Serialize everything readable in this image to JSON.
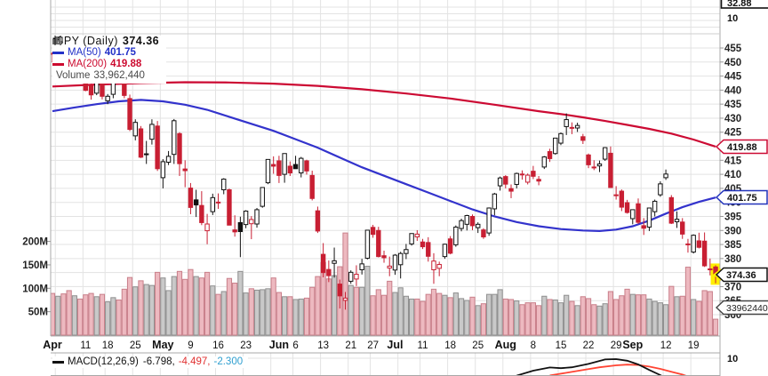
{
  "legend": {
    "symbol_label": "SPY (Daily)",
    "symbol_value": "374.36",
    "ma50_label": "MA(50)",
    "ma50_value": "401.75",
    "ma200_label": "MA(200)",
    "ma200_value": "419.88",
    "volume_label": "Volume",
    "volume_value": "33,962,440"
  },
  "macd_legend": {
    "label": "MACD(12,26,9)",
    "macd_value": "-6.798,",
    "signal_value": "-4.497,",
    "hist_value": "-2.300"
  },
  "axis_boxes": {
    "ma200_tag": "419.88",
    "ma50_tag": "401.75",
    "last_price_tag": "374.36",
    "volume_tag": "33962440",
    "top_panel_tag": "32.88",
    "top_panel_tick": "10",
    "macd_panel_tick": "10"
  },
  "colors": {
    "candle_red": "#c81f33",
    "candle_black": "#111111",
    "ma50": "#3333cc",
    "ma200": "#cc0a33",
    "vol_red_fill": "#edb9c0",
    "vol_red_stroke": "#c97f8a",
    "vol_gray_fill": "#c9c9c9",
    "vol_gray_stroke": "#8f8f8f",
    "macd_line": "#111111",
    "macd_signal": "#ff4433",
    "highlight_yellow": "#ffee00",
    "grid": "#e3e3e3",
    "axis": "#a8a8a8",
    "tick_text": "#222222"
  },
  "chart_data": {
    "type": "candlestick",
    "symbol": "SPY (Daily)",
    "last_price": 374.36,
    "price_axis_ticks": [
      455,
      450,
      445,
      440,
      435,
      430,
      425,
      420,
      415,
      410,
      405,
      400,
      395,
      390,
      385,
      380,
      375,
      370,
      365,
      360
    ],
    "volume_axis_ticks": [
      {
        "label": "200M",
        "value": 200
      },
      {
        "label": "150M",
        "value": 150
      },
      {
        "label": "100M",
        "value": 100
      },
      {
        "label": "50M",
        "value": 50
      }
    ],
    "x_labels": [
      {
        "day": 0,
        "text": "Apr",
        "month": true
      },
      {
        "day": 6,
        "text": "11",
        "month": false
      },
      {
        "day": 10,
        "text": "18",
        "month": false
      },
      {
        "day": 15,
        "text": "25",
        "month": false
      },
      {
        "day": 20,
        "text": "May",
        "month": true
      },
      {
        "day": 25,
        "text": "9",
        "month": false
      },
      {
        "day": 30,
        "text": "16",
        "month": false
      },
      {
        "day": 35,
        "text": "23",
        "month": false
      },
      {
        "day": 41,
        "text": "Jun",
        "month": true
      },
      {
        "day": 44,
        "text": "6",
        "month": false
      },
      {
        "day": 49,
        "text": "13",
        "month": false
      },
      {
        "day": 54,
        "text": "21",
        "month": false
      },
      {
        "day": 58,
        "text": "27",
        "month": false
      },
      {
        "day": 62,
        "text": "Jul",
        "month": true
      },
      {
        "day": 67,
        "text": "11",
        "month": false
      },
      {
        "day": 72,
        "text": "18",
        "month": false
      },
      {
        "day": 77,
        "text": "25",
        "month": false
      },
      {
        "day": 82,
        "text": "Aug",
        "month": true
      },
      {
        "day": 87,
        "text": "8",
        "month": false
      },
      {
        "day": 92,
        "text": "15",
        "month": false
      },
      {
        "day": 97,
        "text": "22",
        "month": false
      },
      {
        "day": 102,
        "text": "29",
        "month": false
      },
      {
        "day": 105,
        "text": "Sep",
        "month": true
      },
      {
        "day": 111,
        "text": "12",
        "month": false
      },
      {
        "day": 116,
        "text": "19",
        "month": false
      }
    ],
    "week_gridline_days": [
      1,
      6,
      10,
      15,
      20,
      25,
      30,
      35,
      40,
      44,
      49,
      54,
      58,
      63,
      67,
      72,
      77,
      82,
      87,
      92,
      97,
      102,
      107,
      111,
      116
    ],
    "days": [
      [
        453.1,
        453.5,
        449.9,
        452.9,
        89
      ],
      [
        453.1,
        456.9,
        452.4,
        456.8,
        83
      ],
      [
        455.2,
        455.9,
        449.7,
        451.0,
        88
      ],
      [
        447.6,
        450.3,
        445.0,
        446.5,
        95
      ],
      [
        446.5,
        448.9,
        443.5,
        448.8,
        84
      ],
      [
        448.0,
        449.4,
        446.0,
        447.6,
        77
      ],
      [
        444.1,
        445.7,
        439.6,
        439.9,
        86
      ],
      [
        441.6,
        444.7,
        436.6,
        438.3,
        89
      ],
      [
        438.9,
        443.7,
        438.2,
        443.3,
        82
      ],
      [
        443.7,
        444.1,
        436.7,
        437.8,
        87
      ],
      [
        436.2,
        438.6,
        435.0,
        437.8,
        71
      ],
      [
        438.5,
        445.1,
        437.1,
        445.0,
        80
      ],
      [
        446.6,
        447.6,
        443.5,
        444.7,
        75
      ],
      [
        447.4,
        450.0,
        437.1,
        438.1,
        98
      ],
      [
        437.0,
        438.4,
        425.4,
        426.0,
        123
      ],
      [
        423.7,
        429.6,
        422.1,
        428.5,
        103
      ],
      [
        426.2,
        427.2,
        415.8,
        416.1,
        116
      ],
      [
        417.1,
        421.9,
        413.7,
        417.3,
        108
      ],
      [
        422.5,
        429.6,
        420.6,
        427.8,
        106
      ],
      [
        427.2,
        429.0,
        411.2,
        412.0,
        134
      ],
      [
        408.8,
        415.4,
        405.0,
        414.5,
        122
      ],
      [
        414.3,
        418.3,
        413.3,
        416.4,
        95
      ],
      [
        417.1,
        429.7,
        413.7,
        429.1,
        125
      ],
      [
        424.5,
        425.0,
        409.4,
        413.8,
        136
      ],
      [
        411.9,
        415.0,
        405.4,
        411.3,
        119
      ],
      [
        405.1,
        406.9,
        395.8,
        398.2,
        140
      ],
      [
        400.9,
        404.5,
        394.8,
        399.1,
        125
      ],
      [
        398.9,
        404.0,
        391.9,
        392.8,
        122
      ],
      [
        389.9,
        395.9,
        385.1,
        392.3,
        134
      ],
      [
        396.7,
        403.1,
        395.5,
        401.7,
        105
      ],
      [
        399.8,
        403.2,
        397.7,
        400.1,
        87
      ],
      [
        404.5,
        408.6,
        402.9,
        408.3,
        93
      ],
      [
        404.5,
        404.9,
        391.8,
        391.9,
        121
      ],
      [
        390.2,
        395.4,
        387.8,
        389.5,
        111
      ],
      [
        392.8,
        394.9,
        380.5,
        389.6,
        136
      ],
      [
        392.1,
        397.2,
        390.8,
        396.9,
        90
      ],
      [
        392.4,
        395.1,
        386.9,
        393.9,
        99
      ],
      [
        392.3,
        398.0,
        391.0,
        397.4,
        96
      ],
      [
        398.6,
        405.4,
        398.1,
        405.3,
        97
      ],
      [
        407.0,
        415.4,
        406.5,
        415.3,
        99
      ],
      [
        413.5,
        416.4,
        410.2,
        412.9,
        122
      ],
      [
        414.8,
        416.6,
        406.9,
        409.6,
        91
      ],
      [
        410.0,
        417.4,
        407.0,
        417.4,
        82
      ],
      [
        412.9,
        414.6,
        409.4,
        410.5,
        82
      ],
      [
        413.5,
        416.6,
        412.0,
        412.0,
        76
      ],
      [
        410.5,
        416.2,
        408.9,
        415.7,
        77
      ],
      [
        414.8,
        415.2,
        409.9,
        411.2,
        79
      ],
      [
        409.6,
        411.3,
        400.7,
        401.4,
        102
      ],
      [
        397.0,
        398.5,
        389.1,
        389.8,
        125
      ],
      [
        381.5,
        385.5,
        373.3,
        375.0,
        155
      ],
      [
        376.1,
        379.3,
        371.6,
        373.9,
        120
      ],
      [
        378.3,
        383.9,
        373.2,
        379.2,
        127
      ],
      [
        370.9,
        372.5,
        362.2,
        366.7,
        146
      ],
      [
        365.1,
        368.1,
        361.8,
        365.9,
        218
      ],
      [
        371.9,
        375.8,
        371.0,
        375.1,
        106
      ],
      [
        372.7,
        377.6,
        370.2,
        374.4,
        102
      ],
      [
        376.0,
        379.9,
        374.3,
        378.1,
        102
      ],
      [
        380.1,
        390.2,
        379.7,
        390.1,
        147
      ],
      [
        391.1,
        392.0,
        387.4,
        388.6,
        84
      ],
      [
        390.0,
        391.3,
        380.4,
        380.7,
        97
      ],
      [
        381.0,
        382.8,
        378.5,
        380.3,
        85
      ],
      [
        376.6,
        380.7,
        373.7,
        377.3,
        115
      ],
      [
        375.9,
        381.6,
        374.2,
        381.2,
        91
      ],
      [
        377.8,
        382.4,
        372.9,
        381.8,
        101
      ],
      [
        381.8,
        385.2,
        379.8,
        383.2,
        83
      ],
      [
        385.2,
        389.0,
        384.6,
        388.9,
        77
      ],
      [
        387.7,
        390.1,
        386.3,
        388.7,
        77
      ],
      [
        385.9,
        387.0,
        383.4,
        384.2,
        72
      ],
      [
        385.7,
        387.6,
        378.9,
        380.8,
        87
      ],
      [
        376.0,
        381.9,
        371.0,
        379.1,
        98
      ],
      [
        376.5,
        378.9,
        373.7,
        377.9,
        89
      ],
      [
        380.7,
        385.3,
        379.9,
        385.1,
        85
      ],
      [
        387.0,
        388.0,
        381.5,
        381.9,
        80
      ],
      [
        384.9,
        391.8,
        384.2,
        391.2,
        90
      ],
      [
        390.7,
        394.2,
        389.7,
        393.5,
        78
      ],
      [
        392.2,
        395.6,
        390.0,
        395.3,
        74
      ],
      [
        395.0,
        395.7,
        390.1,
        391.7,
        81
      ],
      [
        391.0,
        392.9,
        389.1,
        392.2,
        63
      ],
      [
        390.2,
        390.8,
        387.0,
        387.7,
        67
      ],
      [
        389.1,
        398.2,
        388.1,
        398.0,
        87
      ],
      [
        397.7,
        403.4,
        395.4,
        403.0,
        87
      ],
      [
        405.9,
        409.2,
        404.2,
        408.7,
        97
      ],
      [
        409.2,
        409.7,
        405.0,
        406.5,
        77
      ],
      [
        404.9,
        406.4,
        401.5,
        404.0,
        76
      ],
      [
        406.4,
        410.6,
        405.0,
        410.3,
        73
      ],
      [
        409.9,
        411.4,
        408.1,
        410.1,
        65
      ],
      [
        407.2,
        410.3,
        406.4,
        409.7,
        69
      ],
      [
        411.1,
        413.0,
        408.3,
        409.3,
        69
      ],
      [
        408.2,
        409.4,
        406.1,
        407.6,
        63
      ],
      [
        412.6,
        416.5,
        411.9,
        416.2,
        83
      ],
      [
        418.1,
        419.1,
        414.4,
        415.6,
        76
      ],
      [
        417.4,
        423.0,
        417.0,
        422.9,
        75
      ],
      [
        421.1,
        424.9,
        420.4,
        424.5,
        69
      ],
      [
        427.0,
        431.7,
        424.0,
        429.5,
        85
      ],
      [
        426.6,
        428.5,
        424.3,
        426.7,
        72
      ],
      [
        426.5,
        428.4,
        425.1,
        427.4,
        63
      ],
      [
        423.4,
        424.4,
        420.8,
        422.1,
        82
      ],
      [
        416.9,
        417.4,
        412.2,
        413.4,
        78
      ],
      [
        412.6,
        415.0,
        411.5,
        412.4,
        65
      ],
      [
        413.0,
        414.9,
        410.8,
        413.7,
        62
      ],
      [
        415.4,
        419.7,
        414.8,
        419.5,
        67
      ],
      [
        417.5,
        419.9,
        405.2,
        405.3,
        93
      ],
      [
        402.5,
        405.8,
        401.0,
        402.7,
        76
      ],
      [
        404.0,
        404.6,
        396.9,
        398.3,
        84
      ],
      [
        399.9,
        400.9,
        396.0,
        396.4,
        98
      ],
      [
        394.2,
        397.5,
        392.2,
        397.4,
        87
      ],
      [
        399.5,
        401.4,
        392.3,
        392.9,
        86
      ],
      [
        391.7,
        394.4,
        388.4,
        390.8,
        86
      ],
      [
        391.2,
        398.0,
        389.8,
        398.0,
        77
      ],
      [
        396.7,
        401.0,
        395.0,
        400.4,
        72
      ],
      [
        402.7,
        407.5,
        402.0,
        406.6,
        69
      ],
      [
        408.8,
        411.7,
        408.0,
        410.1,
        65
      ],
      [
        401.7,
        402.6,
        392.3,
        392.6,
        104
      ],
      [
        393.1,
        396.8,
        390.9,
        394.0,
        82
      ],
      [
        393.0,
        394.4,
        387.0,
        388.7,
        83
      ],
      [
        385.0,
        387.0,
        382.1,
        385.2,
        145
      ],
      [
        382.3,
        388.6,
        381.8,
        388.3,
        76
      ],
      [
        386.3,
        389.2,
        383.6,
        384.0,
        72
      ],
      [
        386.2,
        389.3,
        377.0,
        377.4,
        95
      ],
      [
        376.3,
        380.0,
        374.0,
        376.0,
        93
      ],
      [
        377.0,
        377.6,
        371.2,
        374.36,
        34
      ]
    ],
    "ma50": [
      [
        0,
        432.5
      ],
      [
        4,
        433.8
      ],
      [
        8,
        435.0
      ],
      [
        12,
        436.0
      ],
      [
        16,
        436.5
      ],
      [
        20,
        436.0
      ],
      [
        24,
        434.8
      ],
      [
        28,
        433.0
      ],
      [
        32,
        430.5
      ],
      [
        36,
        428.0
      ],
      [
        40,
        425.5
      ],
      [
        44,
        422.5
      ],
      [
        48,
        419.5
      ],
      [
        52,
        416.0
      ],
      [
        56,
        412.5
      ],
      [
        60,
        409.5
      ],
      [
        64,
        406.5
      ],
      [
        68,
        403.5
      ],
      [
        72,
        400.5
      ],
      [
        76,
        397.5
      ],
      [
        80,
        395.0
      ],
      [
        84,
        393.0
      ],
      [
        88,
        391.5
      ],
      [
        92,
        390.5
      ],
      [
        96,
        390.0
      ],
      [
        99,
        389.8
      ],
      [
        102,
        390.3
      ],
      [
        105,
        391.5
      ],
      [
        108,
        393.5
      ],
      [
        111,
        396.0
      ],
      [
        114,
        398.3
      ],
      [
        117,
        400.2
      ],
      [
        120,
        401.75
      ]
    ],
    "ma200": [
      [
        0,
        441.3
      ],
      [
        8,
        442.0
      ],
      [
        16,
        442.5
      ],
      [
        24,
        442.8
      ],
      [
        32,
        442.7
      ],
      [
        40,
        442.3
      ],
      [
        48,
        441.5
      ],
      [
        56,
        440.3
      ],
      [
        64,
        438.8
      ],
      [
        72,
        437.0
      ],
      [
        80,
        434.8
      ],
      [
        88,
        432.5
      ],
      [
        93,
        431.2
      ],
      [
        96,
        430.3
      ],
      [
        100,
        429.0
      ],
      [
        104,
        427.6
      ],
      [
        108,
        426.2
      ],
      [
        112,
        424.5
      ],
      [
        116,
        422.4
      ],
      [
        120,
        419.88
      ]
    ],
    "macd": {
      "label": "MACD(12,26,9)",
      "values": [
        -6.798,
        -4.497,
        -2.3
      ],
      "panel_top_value": 10,
      "line": [
        [
          84,
          0.2
        ],
        [
          87,
          3.0
        ],
        [
          90,
          4.8
        ],
        [
          92,
          4.4
        ],
        [
          94,
          4.9
        ],
        [
          97,
          6.8
        ],
        [
          100,
          9.3
        ],
        [
          102,
          9.5
        ],
        [
          104,
          8.6
        ],
        [
          106,
          6.5
        ],
        [
          108,
          3.4
        ],
        [
          110,
          0.5
        ],
        [
          111,
          -1.2
        ]
      ],
      "signal": [
        [
          90,
          0.3
        ],
        [
          93,
          1.8
        ],
        [
          96,
          3.4
        ],
        [
          99,
          4.9
        ],
        [
          102,
          6.0
        ],
        [
          104,
          6.4
        ],
        [
          106,
          6.2
        ],
        [
          108,
          5.3
        ],
        [
          110,
          4.0
        ],
        [
          112,
          2.4
        ],
        [
          114,
          0.8
        ],
        [
          115,
          -0.3
        ]
      ]
    }
  }
}
